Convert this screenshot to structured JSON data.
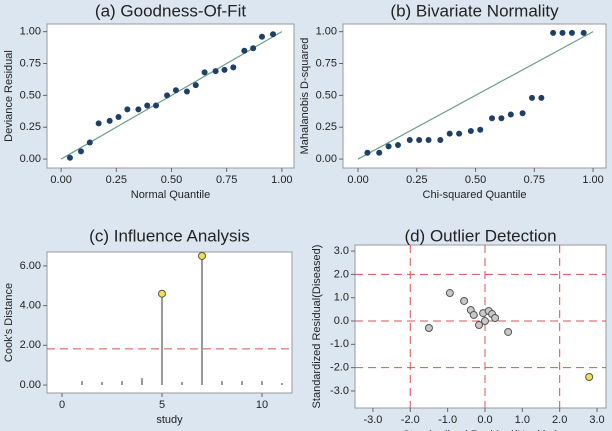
{
  "chart_data": [
    {
      "type": "scatter",
      "title": "(a) Goodness-Of-Fit",
      "xlabel": "Normal Quantile",
      "ylabel": "Deviance Residual",
      "x": [
        0.04,
        0.09,
        0.13,
        0.17,
        0.22,
        0.26,
        0.3,
        0.35,
        0.39,
        0.43,
        0.48,
        0.52,
        0.57,
        0.61,
        0.65,
        0.7,
        0.74,
        0.78,
        0.83,
        0.87,
        0.91,
        0.96
      ],
      "y": [
        0.01,
        0.06,
        0.13,
        0.28,
        0.3,
        0.33,
        0.39,
        0.39,
        0.42,
        0.42,
        0.5,
        0.54,
        0.53,
        0.58,
        0.68,
        0.69,
        0.7,
        0.72,
        0.85,
        0.87,
        0.96,
        0.98
      ],
      "color": "#1f3f66",
      "fit_line": {
        "x": [
          0,
          1
        ],
        "y": [
          0,
          1
        ],
        "color": "#6a9f86"
      },
      "xlim": [
        -0.064,
        1.055
      ],
      "ylim": [
        -0.07,
        1.06
      ],
      "xticks": [
        {
          "value": 0,
          "label": "0.00"
        },
        {
          "value": 0.25,
          "label": "0.25"
        },
        {
          "value": 0.5,
          "label": "0.50"
        },
        {
          "value": 0.75,
          "label": "0.75"
        },
        {
          "value": 1,
          "label": "1.00"
        }
      ],
      "yticks": [
        {
          "value": 0,
          "label": "0.00"
        },
        {
          "value": 0.25,
          "label": "0.25"
        },
        {
          "value": 0.5,
          "label": "0.50"
        },
        {
          "value": 0.75,
          "label": "0.75"
        },
        {
          "value": 1,
          "label": "1.00"
        }
      ]
    },
    {
      "type": "scatter",
      "title": "(b) Bivariate Normality",
      "xlabel": "Chi-squared Quantile",
      "ylabel": "Mahalanobis D-squared",
      "x": [
        0.04,
        0.09,
        0.13,
        0.17,
        0.22,
        0.26,
        0.3,
        0.35,
        0.39,
        0.43,
        0.48,
        0.52,
        0.57,
        0.61,
        0.65,
        0.7,
        0.74,
        0.78,
        0.83,
        0.87,
        0.91,
        0.96
      ],
      "y": [
        0.05,
        0.05,
        0.1,
        0.11,
        0.15,
        0.15,
        0.15,
        0.15,
        0.2,
        0.2,
        0.22,
        0.23,
        0.32,
        0.32,
        0.35,
        0.36,
        0.48,
        0.48,
        0.99,
        0.99,
        0.99,
        0.99
      ],
      "color": "#1f3f66",
      "fit_line": {
        "x": [
          0,
          1
        ],
        "y": [
          0,
          1
        ],
        "color": "#6a9f86"
      },
      "xlim": [
        -0.064,
        1.055
      ],
      "ylim": [
        -0.07,
        1.06
      ],
      "xticks": [
        {
          "value": 0,
          "label": "0.00"
        },
        {
          "value": 0.25,
          "label": "0.25"
        },
        {
          "value": 0.5,
          "label": "0.50"
        },
        {
          "value": 0.75,
          "label": "0.75"
        },
        {
          "value": 1,
          "label": "1.00"
        }
      ],
      "yticks": [
        {
          "value": 0,
          "label": "0.00"
        },
        {
          "value": 0.25,
          "label": "0.25"
        },
        {
          "value": 0.5,
          "label": "0.50"
        },
        {
          "value": 0.75,
          "label": "0.75"
        },
        {
          "value": 1,
          "label": "1.00"
        }
      ]
    },
    {
      "type": "stem",
      "title": "(c) Influence Analysis",
      "xlabel": "study",
      "ylabel": "Cook's Distance",
      "x": [
        1,
        2,
        3,
        4,
        5,
        6,
        7,
        8,
        9,
        10,
        11
      ],
      "y": [
        0.2,
        0.15,
        0.2,
        0.35,
        4.6,
        0.15,
        6.5,
        0.2,
        0.2,
        0.2,
        0.1
      ],
      "color": "#555555",
      "marker_color": "#f2e14c",
      "threshold": 1.82,
      "threshold_color": "#d9534f",
      "xlim": [
        -0.75,
        11.5
      ],
      "ylim": [
        -0.4,
        6.7
      ],
      "xticks": [
        0,
        5,
        10
      ],
      "yticks": [
        {
          "value": 0,
          "label": "0.00"
        },
        {
          "value": 2,
          "label": "2.00"
        },
        {
          "value": 4,
          "label": "4.00"
        },
        {
          "value": 6,
          "label": "6.00"
        }
      ]
    },
    {
      "type": "scatter",
      "title": "(d) Outlier Detection",
      "xlabel": "Standardized Residual(Healthy)",
      "ylabel": "Standardized Residual(Diseased)",
      "x": [
        -1.5,
        -0.94,
        -0.56,
        -0.38,
        -0.3,
        -0.16,
        -0.05,
        0.0,
        0.1,
        0.19,
        0.27,
        0.62,
        2.79
      ],
      "y": [
        -0.3,
        1.2,
        0.86,
        0.47,
        0.26,
        -0.17,
        0.34,
        0.0,
        0.43,
        0.3,
        0.13,
        -0.47,
        -2.4
      ],
      "color": "#c8c8c8",
      "outlier_color": "#f2e14c",
      "ref_lines": [
        -2,
        0,
        2
      ],
      "ref_color": "#d9534f",
      "xlim": [
        -3.48,
        3.24
      ],
      "ylim": [
        -3.73,
        3.26
      ],
      "xticks": [
        {
          "value": -3,
          "label": "-3.0"
        },
        {
          "value": -2,
          "label": "-2.0"
        },
        {
          "value": -1,
          "label": "-1.0"
        },
        {
          "value": 0,
          "label": "0.0"
        },
        {
          "value": 1,
          "label": "1.0"
        },
        {
          "value": 2,
          "label": "2.0"
        },
        {
          "value": 3,
          "label": "3.0"
        }
      ],
      "yticks": [
        {
          "value": -3,
          "label": "-3.0"
        },
        {
          "value": -2,
          "label": "-2.0"
        },
        {
          "value": -1,
          "label": "-1.0"
        },
        {
          "value": 0,
          "label": "0.0"
        },
        {
          "value": 1,
          "label": "1.0"
        },
        {
          "value": 2,
          "label": "2.0"
        },
        {
          "value": 3,
          "label": "3.0"
        }
      ]
    }
  ]
}
